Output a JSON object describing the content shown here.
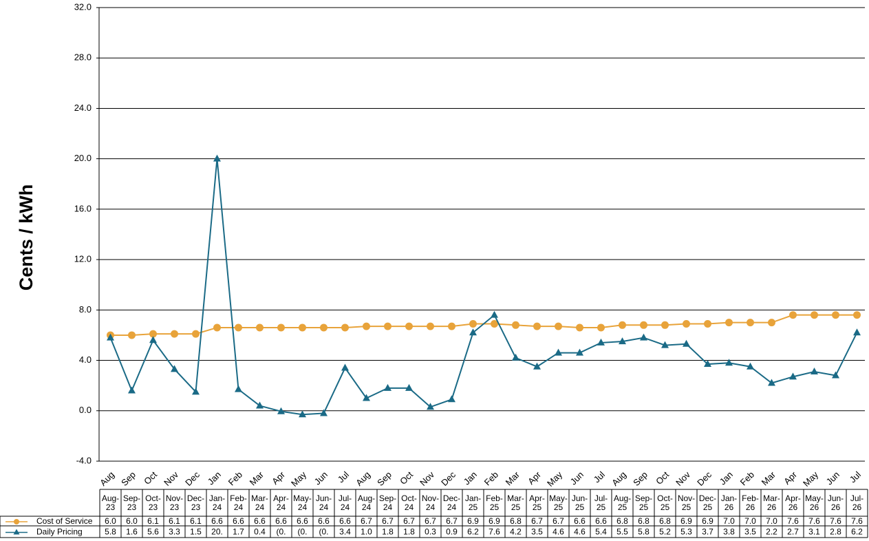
{
  "chart_data": {
    "type": "line",
    "y_label": "Cents / kWh",
    "categories": [
      "Aug",
      "Sep",
      "Oct",
      "Nov",
      "Dec",
      "Jan",
      "Feb",
      "Mar",
      "Apr",
      "May",
      "Jun",
      "Jul",
      "Aug",
      "Sep",
      "Oct",
      "Nov",
      "Dec",
      "Jan",
      "Feb",
      "Mar",
      "Apr",
      "May",
      "Jun",
      "Jul",
      "Aug",
      "Sep",
      "Oct",
      "Nov",
      "Dec",
      "Jan",
      "Feb",
      "Mar",
      "Apr",
      "May",
      "Jun",
      "Jul"
    ],
    "table_headers": [
      "Aug-23",
      "Sep-23",
      "Oct-23",
      "Nov-23",
      "Dec-23",
      "Jan-24",
      "Feb-24",
      "Mar-24",
      "Apr-24",
      "May-24",
      "Jun-24",
      "Jul-24",
      "Aug-24",
      "Sep-24",
      "Oct-24",
      "Nov-24",
      "Dec-24",
      "Jan-25",
      "Feb-25",
      "Mar-25",
      "Apr-25",
      "May-25",
      "Jun-25",
      "Jul-25",
      "Aug-25",
      "Sep-25",
      "Oct-25",
      "Nov-25",
      "Dec-25",
      "Jan-26",
      "Feb-26",
      "Mar-26",
      "Apr-26",
      "May-26",
      "Jun-26",
      "Jul-26"
    ],
    "series": [
      {
        "name": "Cost of Service",
        "color": "#e8a33a",
        "marker": "circle",
        "values": [
          6.0,
          6.0,
          6.1,
          6.1,
          6.1,
          6.6,
          6.6,
          6.6,
          6.6,
          6.6,
          6.6,
          6.6,
          6.7,
          6.7,
          6.7,
          6.7,
          6.7,
          6.9,
          6.9,
          6.8,
          6.7,
          6.7,
          6.6,
          6.6,
          6.8,
          6.8,
          6.8,
          6.9,
          6.9,
          7.0,
          7.0,
          7.0,
          7.6,
          7.6,
          7.6,
          7.6
        ],
        "value_labels": [
          "6.0",
          "6.0",
          "6.1",
          "6.1",
          "6.1",
          "6.6",
          "6.6",
          "6.6",
          "6.6",
          "6.6",
          "6.6",
          "6.6",
          "6.7",
          "6.7",
          "6.7",
          "6.7",
          "6.7",
          "6.9",
          "6.9",
          "6.8",
          "6.7",
          "6.7",
          "6.6",
          "6.6",
          "6.8",
          "6.8",
          "6.8",
          "6.9",
          "6.9",
          "7.0",
          "7.0",
          "7.0",
          "7.6",
          "7.6",
          "7.6",
          "7.6"
        ]
      },
      {
        "name": "Daily Pricing",
        "color": "#1a6a86",
        "marker": "triangle",
        "values": [
          5.8,
          1.6,
          5.6,
          3.3,
          1.5,
          20.0,
          1.7,
          0.4,
          -0.05,
          -0.3,
          -0.2,
          3.4,
          1.0,
          1.8,
          1.8,
          0.3,
          0.9,
          6.2,
          7.6,
          4.2,
          3.5,
          4.6,
          4.6,
          5.4,
          5.5,
          5.8,
          5.2,
          5.3,
          3.7,
          3.8,
          3.5,
          2.2,
          2.7,
          3.1,
          2.8,
          6.2
        ],
        "value_labels": [
          "5.8",
          "1.6",
          "5.6",
          "3.3",
          "1.5",
          "20.",
          "1.7",
          "0.4",
          "(0.",
          "(0.",
          "(0.",
          "3.4",
          "1.0",
          "1.8",
          "1.8",
          "0.3",
          "0.9",
          "6.2",
          "7.6",
          "4.2",
          "3.5",
          "4.6",
          "4.6",
          "5.4",
          "5.5",
          "5.8",
          "5.2",
          "5.3",
          "3.7",
          "3.8",
          "3.5",
          "2.2",
          "2.7",
          "3.1",
          "2.8",
          "6.2"
        ]
      }
    ],
    "ylim": [
      -4,
      32
    ],
    "yticks": [
      {
        "value": -4,
        "label": "-4.0"
      },
      {
        "value": 0,
        "label": "0.0"
      },
      {
        "value": 4,
        "label": "4.0"
      },
      {
        "value": 8,
        "label": "8.0"
      },
      {
        "value": 12,
        "label": "12.0"
      },
      {
        "value": 16,
        "label": "16.0"
      },
      {
        "value": 20,
        "label": "20.0"
      },
      {
        "value": 24,
        "label": "24.0"
      },
      {
        "value": 28,
        "label": "28.0"
      },
      {
        "value": 32,
        "label": "32.0"
      }
    ],
    "grid": true
  }
}
